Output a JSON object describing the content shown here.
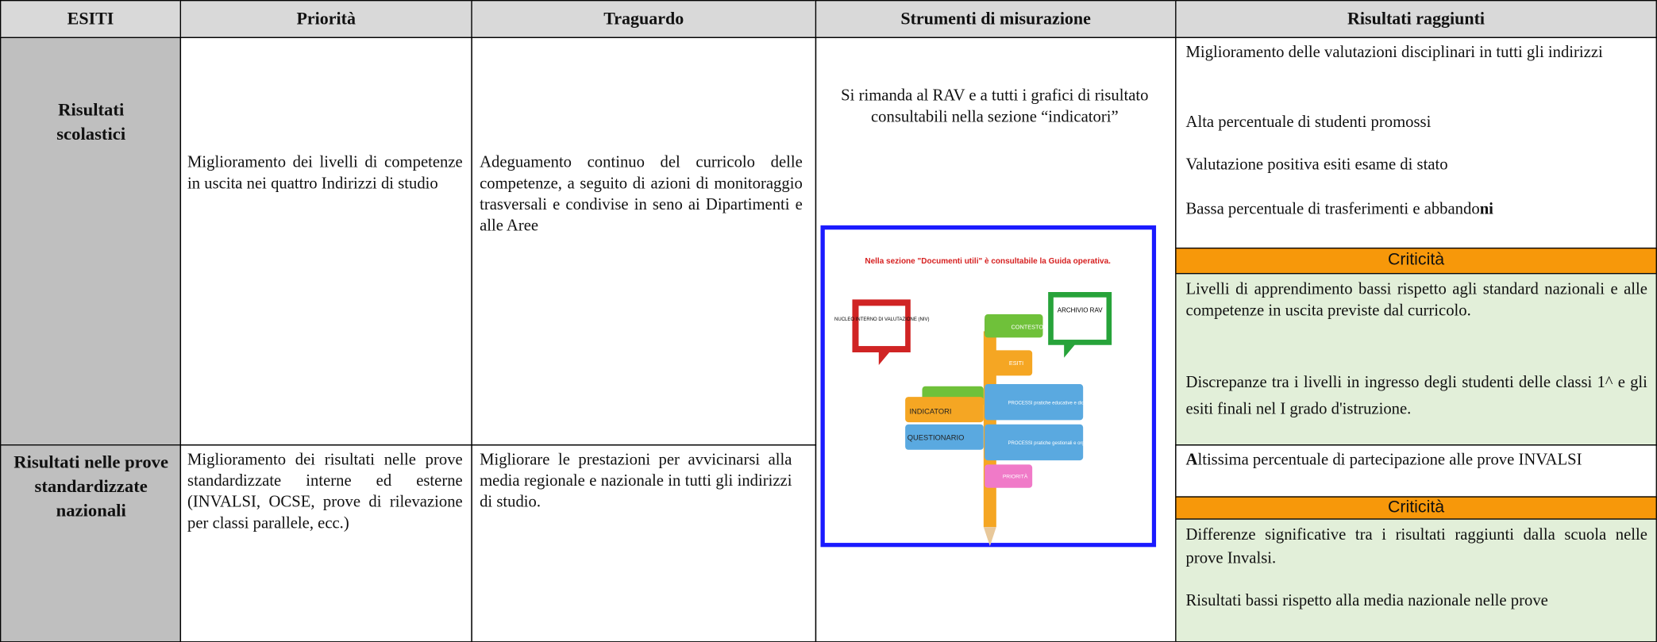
{
  "table": {
    "header": [
      "ESITI",
      "Priorità",
      "Traguardo",
      "Strumenti di misurazione",
      "Risultati raggiunti"
    ],
    "rows": [
      {
        "esito": "Risultati scolastici",
        "priorita": "Miglioramento dei livelli di competenze in uscita  nei quattro Indirizzi di studio",
        "traguardo": "Adeguamento continuo del curricolo delle competenze, a seguito di azioni di monitoraggio trasversali e condivise in seno ai Dipartimenti e alle Aree",
        "risultati": [
          "Miglioramento delle valutazioni disciplinari in tutti gli indirizzi",
          "Alta percentuale di studenti promossi",
          "Valutazione positiva esiti esame di stato",
          [
            "Bassa percentuale di trasferimenti e abbando",
            "ni"
          ]
        ],
        "criticita_label": "Criticità",
        "criticita": [
          "Livelli di apprendimento bassi rispetto agli standard nazionali e alle competenze in uscita previste dal curricolo.",
          "Discrepanze tra i livelli in ingresso degli studenti delle classi 1^ e gli esiti finali nel I grado d'istruzione."
        ]
      },
      {
        "esito": "Risultati nelle prove standardizzate nazionali",
        "priorita": "Miglioramento dei risultati nelle prove standardizzate interne ed esterne (INVALSI, OCSE, prove di rilevazione per classi parallele, ecc.)",
        "traguardo": "Migliorare le prestazioni per avvicinarsi alla media regionale e nazionale in tutti gli indirizzi di studio.",
        "risultati": [
          [
            "A",
            "ltissima percentuale di partecipazione alle prove INVALSI"
          ]
        ],
        "criticita_label": "Criticità",
        "criticita": [
          "Differenze significative tra i risultati raggiunti dalla scuola nelle prove Invalsi.",
          "Risultati bassi rispetto alla media nazionale nelle prove"
        ]
      }
    ],
    "strumenti": "Si rimanda al RAV e a tutti i grafici di risultato consultabili nella sezione “indicatori”",
    "image": {
      "caption": "Nella sezione \"Documenti utili\" è consultabile la Guida operativa.",
      "niv": "NUCLEO INTERNO DI VALUTAZIONE (NIV)",
      "archivio": "ARCHIVIO RAV",
      "contesto": "CONTESTO",
      "esiti": "ESITI",
      "processi1": "PROCESSI pratiche educative e didattiche",
      "processi2": "PROCESSI pratiche gestionali e organizzative",
      "priorita": "PRIORITÀ",
      "indicatori": "INDICATORI",
      "questionario": "QUESTIONARIO"
    }
  }
}
